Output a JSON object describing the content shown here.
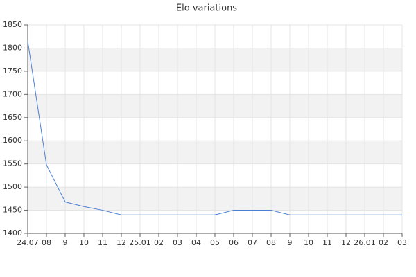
{
  "chart_data": {
    "type": "line",
    "title": "Elo variations",
    "categories": [
      "24.07",
      "08",
      "9",
      "10",
      "11",
      "12",
      "25.01",
      "02",
      "03",
      "04",
      "05",
      "06",
      "07",
      "08",
      "9",
      "10",
      "11",
      "12",
      "26.01",
      "02",
      "03"
    ],
    "values": [
      1815,
      1548,
      1468,
      1458,
      1450,
      1440,
      1440,
      1440,
      1440,
      1440,
      1440,
      1450,
      1450,
      1450,
      1440,
      1440,
      1440,
      1440,
      1440,
      1440,
      1440
    ],
    "color": "#4a7fd4",
    "ylim": [
      1400,
      1850
    ],
    "yticks": [
      1400,
      1450,
      1500,
      1550,
      1600,
      1650,
      1700,
      1750,
      1800,
      1850
    ],
    "grid": true,
    "alternate_bands": true
  }
}
